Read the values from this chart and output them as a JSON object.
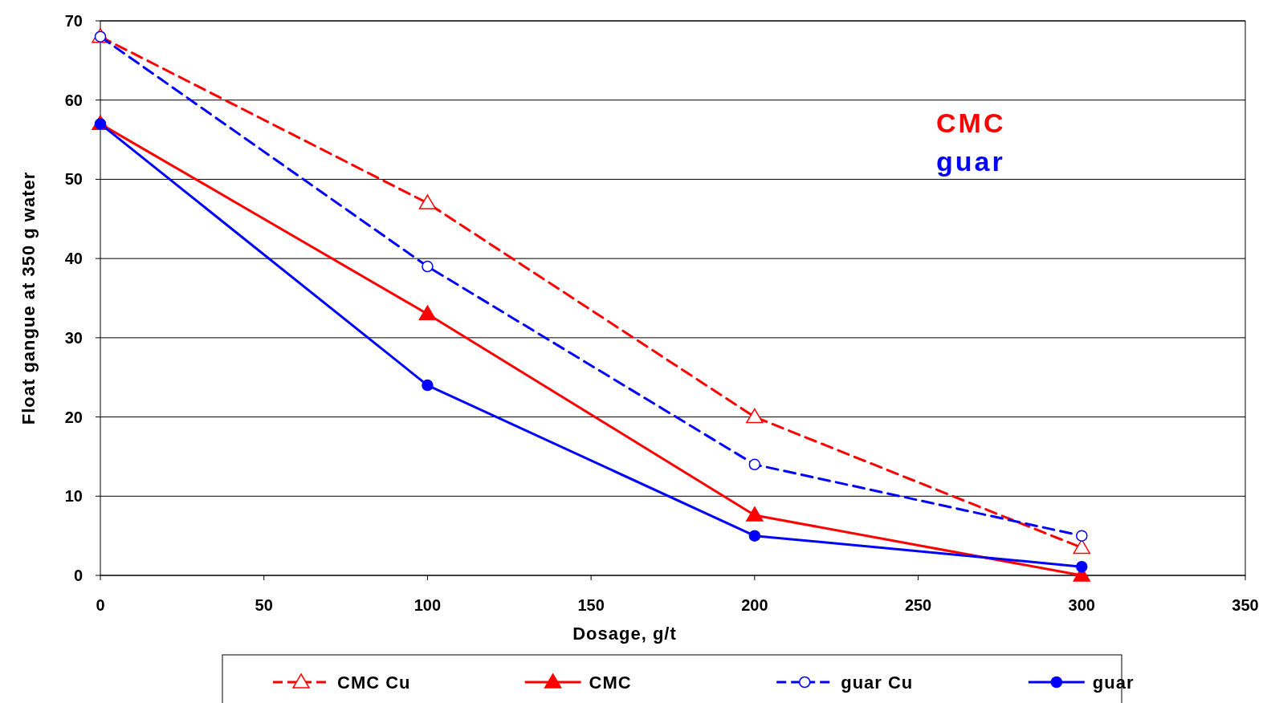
{
  "chart_data": {
    "type": "line",
    "xlabel": "Dosage, g/t",
    "ylabel": "Float gangue at 350 g water",
    "x": [
      0,
      100,
      200,
      300
    ],
    "series": [
      {
        "name": "CMC Cu",
        "color": "#ff0000",
        "values": [
          68,
          47,
          20,
          3.5
        ],
        "marker": "triangle",
        "line_style": "dashed"
      },
      {
        "name": "CMC",
        "color": "#ff0000",
        "values": [
          57,
          33,
          7.6,
          0
        ],
        "marker": "triangle",
        "line_style": "solid"
      },
      {
        "name": "guar Cu",
        "color": "#0000ff",
        "values": [
          68,
          39,
          14,
          5
        ],
        "marker": "circle",
        "line_style": "dashed"
      },
      {
        "name": "guar",
        "color": "#0000ff",
        "values": [
          57,
          24,
          5,
          1.1
        ],
        "marker": "circle",
        "line_style": "solid"
      }
    ],
    "annotations": [
      "CMC",
      "guar"
    ],
    "xlim": [
      0,
      350
    ],
    "xticks": [
      0,
      50,
      100,
      150,
      200,
      250,
      300,
      350
    ],
    "ylim": [
      0,
      70
    ],
    "yticks": [
      0,
      10,
      20,
      30,
      40,
      50,
      60,
      70
    ],
    "grid": "y",
    "legend": "bottom"
  }
}
